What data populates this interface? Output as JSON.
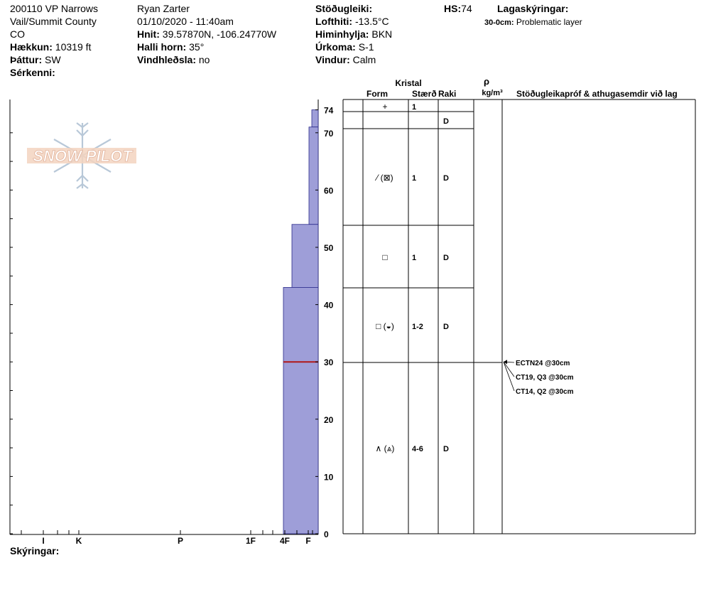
{
  "header": {
    "title": "200110 VP Narrows",
    "location": "Vail/Summit County",
    "state": "CO",
    "elevation_label": "Hækkun:",
    "elevation": "10319 ft",
    "aspect_label": "Þáttur:",
    "aspect": "SW",
    "specifics_label": "Sérkenni:",
    "observer": "Ryan Zarter",
    "datetime": "01/10/2020 - 11:40am",
    "coords_label": "Hnit:",
    "coords": "39.57870N, -106.24770W",
    "slope_label": "Halli horn:",
    "slope": "35°",
    "wind_loading_label": "Vindhleðsla:",
    "wind_loading": "no",
    "stability_label": "Stöðugleiki:",
    "stability": "",
    "air_temp_label": "Lofthiti:",
    "air_temp": "-13.5°C",
    "sky_label": "Himinhylja:",
    "sky": "BKN",
    "precip_label": "Úrkoma:",
    "precip": "S-1",
    "wind_label": "Vindur:",
    "wind": "Calm",
    "hs_label": "HS:",
    "hs": "74",
    "legend_label": "Lagaskýringar:",
    "legend_range": "30-0cm:",
    "legend_text": "Problematic layer"
  },
  "watermark": "SNOW PILOT",
  "footer": {
    "notes_label": "Skýringar:"
  },
  "colors": {
    "hardness_fill": "#9e9ed8",
    "hardness_stroke": "#2a2a8a",
    "problem_line": "#b01818"
  },
  "table": {
    "kristal_label": "Kristal",
    "form_label": "Form",
    "size_label": "Stærð",
    "moisture_label": "Raki",
    "density_symbol": "ρ",
    "density_unit": "kg/m³",
    "comments_label": "Stöðugleikapróf & athugasemdir við lag"
  },
  "chart_data": {
    "type": "snow-profile",
    "y_label_unit": "cm",
    "ylim": [
      0,
      74
    ],
    "y_ticks": [
      "0",
      "10",
      "20",
      "30",
      "40",
      "50",
      "60",
      "70",
      "74"
    ],
    "hardness_ticks": [
      "I",
      "K",
      "P",
      "1F",
      "4F",
      "F"
    ],
    "layers": [
      {
        "top": 74,
        "bottom": 71,
        "hardness": "F",
        "form": "+",
        "size": "1",
        "moisture": ""
      },
      {
        "top": 71,
        "bottom": 54,
        "hardness": "F+",
        "form": "⁄ (⊠)",
        "size": "1",
        "moisture": "D"
      },
      {
        "top": 54,
        "bottom": 43,
        "hardness": "4F-",
        "form": "□",
        "size": "1",
        "moisture": "D"
      },
      {
        "top": 43,
        "bottom": 30,
        "hardness": "4F",
        "form": "□ (◒)",
        "size": "1-2",
        "moisture": "D"
      },
      {
        "top": 30,
        "bottom": 0,
        "hardness": "4F",
        "form": "∧ (⩓)",
        "size": "4-6",
        "moisture": "D"
      }
    ],
    "extra_row": {
      "top": 74,
      "bottom": 71,
      "moisture": "D"
    },
    "problem_layer_depth": 30,
    "tests": [
      {
        "label": "ECTN24 @30cm",
        "depth": 30
      },
      {
        "label": "CT19, Q3 @30cm",
        "depth": 30
      },
      {
        "label": "CT14, Q2 @30cm",
        "depth": 30
      }
    ]
  }
}
